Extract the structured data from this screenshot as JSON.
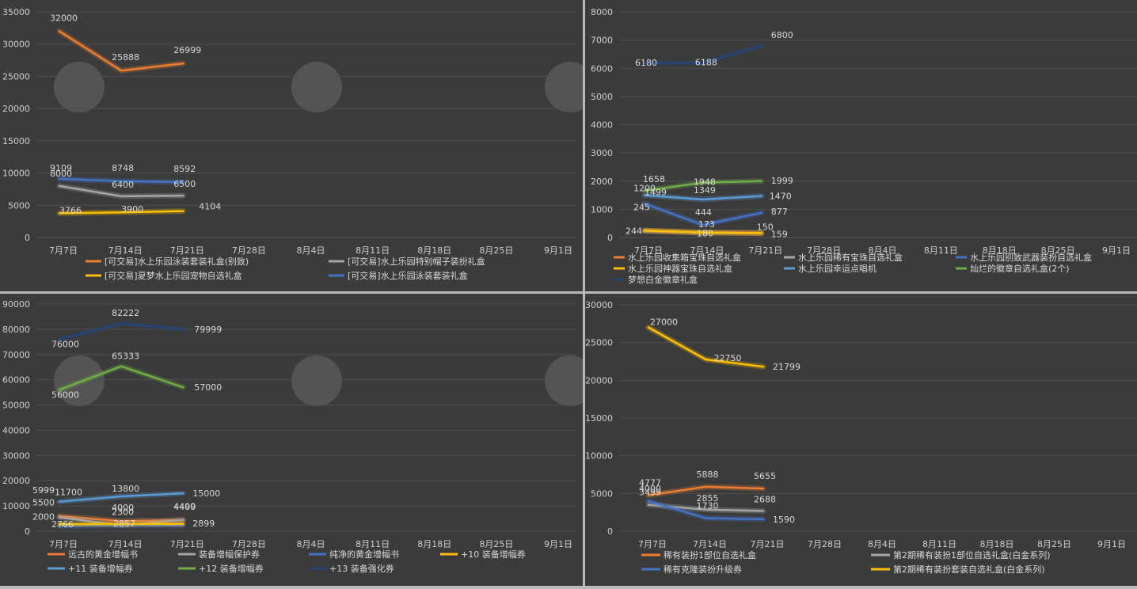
{
  "charts": [
    {
      "type": "line",
      "x": [
        "7月7日",
        "7月14日",
        "7月21日",
        "7月28日",
        "8月4日",
        "8月11日",
        "8月18日",
        "8月25日",
        "9月1日"
      ],
      "ylim": [
        0,
        35000
      ],
      "ytick_step": 5000,
      "grid": true,
      "legend": "bottom",
      "legend_cols": 2,
      "series": [
        {
          "name": "[可交易]水上乐园泳装套装礼盒(别致)",
          "color": "#ed7d31",
          "values": [
            32000,
            25888,
            26999
          ],
          "labels": [
            "32000",
            "25888",
            "26999"
          ]
        },
        {
          "name": "[可交易]水上乐园特别帽子装扮礼盒",
          "color": "#a5a5a5",
          "values": [
            8000,
            6400,
            6500
          ],
          "labels": [
            "8000",
            "6400",
            "6500"
          ]
        },
        {
          "name": "[可交易]夏梦水上乐园宠物自选礼盒",
          "color": "#ffc000",
          "values": [
            3766,
            3900,
            4104
          ],
          "labels": [
            "3766",
            "3900",
            "4104"
          ]
        },
        {
          "name": "[可交易]水上乐园泳装套装礼盒",
          "color": "#4472c4",
          "values": [
            9109,
            8748,
            8592
          ],
          "labels": [
            "9109",
            "8748",
            "8592"
          ]
        }
      ]
    },
    {
      "type": "line",
      "x": [
        "7月7日",
        "7月14日",
        "7月21日",
        "7月28日",
        "8月4日",
        "8月11日",
        "8月18日",
        "8月25日",
        "9月1日"
      ],
      "ylim": [
        0,
        8000
      ],
      "ytick_step": 1000,
      "grid": true,
      "legend": "bottom",
      "legend_cols": 3,
      "series": [
        {
          "name": "水上乐园收集箱宝珠自选礼盒",
          "color": "#ed7d31",
          "values": [
            245,
            173,
            150
          ],
          "labels": [
            "245",
            "173",
            "150"
          ]
        },
        {
          "name": "水上乐园稀有宝珠自选礼盒",
          "color": "#a5a5a5",
          "values": [
            235,
            170,
            160
          ],
          "labels": [
            "",
            "",
            ""
          ]
        },
        {
          "name": "水上乐园别致武器装扮自选礼盒",
          "color": "#4472c4",
          "values": [
            1200,
            444,
            877
          ],
          "labels": [
            "1200",
            "444",
            "877"
          ]
        },
        {
          "name": "水上乐园神器宝珠自选礼盒",
          "color": "#ffc000",
          "values": [
            244,
            180,
            159
          ],
          "labels": [
            "244",
            "180",
            "159"
          ]
        },
        {
          "name": "水上乐园幸运点唱机",
          "color": "#5b9bd5",
          "values": [
            1499,
            1349,
            1470
          ],
          "labels": [
            "1499",
            "1349",
            "1470"
          ]
        },
        {
          "name": "灿烂的徽章自选礼盒(2个)",
          "color": "#70ad47",
          "values": [
            1658,
            1948,
            1999
          ],
          "labels": [
            "1658",
            "1948",
            "1999"
          ]
        },
        {
          "name": "梦想白金徽章礼盒",
          "color": "#264478",
          "values": [
            6180,
            6188,
            6800
          ],
          "labels": [
            "6180",
            "6188",
            "6800"
          ]
        }
      ]
    },
    {
      "type": "line",
      "x": [
        "7月7日",
        "7月14日",
        "7月21日",
        "7月28日",
        "8月4日",
        "8月11日",
        "8月18日",
        "8月25日",
        "9月1日"
      ],
      "ylim": [
        0,
        90000
      ],
      "ytick_step": 10000,
      "grid": true,
      "legend": "bottom",
      "legend_cols": 4,
      "series": [
        {
          "name": "远古的黄金增幅书",
          "color": "#ed7d31",
          "values": [
            5999,
            4000,
            4400
          ],
          "labels": [
            "5999",
            "4000",
            "4400"
          ]
        },
        {
          "name": "装备增幅保护券",
          "color": "#a5a5a5",
          "values": [
            5500,
            2300,
            4499
          ],
          "labels": [
            "5500",
            "2300",
            "4499"
          ]
        },
        {
          "name": "纯净的黄金增幅书",
          "color": "#4472c4",
          "values": [
            2000,
            2300,
            2186
          ],
          "labels": [
            "2000",
            "",
            ""
          ]
        },
        {
          "name": "+10 装备增幅券",
          "color": "#ffc000",
          "values": [
            2766,
            2857,
            2899
          ],
          "labels": [
            "2766",
            "2857",
            "2899"
          ]
        },
        {
          "name": "+11 装备增幅券",
          "color": "#5b9bd5",
          "values": [
            11700,
            13800,
            15000
          ],
          "labels": [
            "11700",
            "13800",
            "15000"
          ]
        },
        {
          "name": "+12 装备增幅券",
          "color": "#70ad47",
          "values": [
            56000,
            65333,
            57000
          ],
          "labels": [
            "56000",
            "65333",
            "57000"
          ]
        },
        {
          "name": "+13 装备强化券",
          "color": "#264478",
          "values": [
            76000,
            82222,
            79999
          ],
          "labels": [
            "76000",
            "82222",
            "79999"
          ]
        }
      ]
    },
    {
      "type": "line",
      "x": [
        "7月7日",
        "7月14日",
        "7月21日",
        "7月28日",
        "8月4日",
        "8月11日",
        "8月18日",
        "8月25日",
        "9月1日"
      ],
      "ylim": [
        0,
        30000
      ],
      "ytick_step": 5000,
      "grid": true,
      "legend": "bottom",
      "legend_cols": 2,
      "series": [
        {
          "name": "稀有装扮1部位自选礼盒",
          "color": "#ed7d31",
          "values": [
            4777,
            5888,
            5655
          ],
          "labels": [
            "4777",
            "5888",
            "5655"
          ]
        },
        {
          "name": "第2期稀有装扮1部位自选礼盒(白金系列)",
          "color": "#a5a5a5",
          "values": [
            3499,
            2855,
            2688
          ],
          "labels": [
            "3499",
            "2855",
            "2688"
          ]
        },
        {
          "name": "稀有克隆装扮升级券",
          "color": "#4472c4",
          "values": [
            4000,
            1730,
            1590
          ],
          "labels": [
            "4000",
            "1730",
            "1590"
          ]
        },
        {
          "name": "第2期稀有装扮套装自选礼盒(白金系列)",
          "color": "#ffc000",
          "values": [
            27000,
            22750,
            21799
          ],
          "labels": [
            "27000",
            "22750",
            "21799"
          ]
        }
      ]
    }
  ]
}
